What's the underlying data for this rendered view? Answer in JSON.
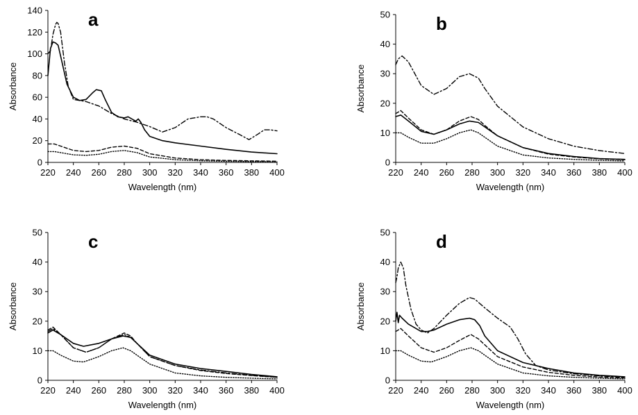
{
  "chart_data": [
    {
      "type": "line",
      "panel_label": "a",
      "xlabel": "Wavelength (nm)",
      "ylabel": "Absorbance",
      "xlim": [
        220,
        400
      ],
      "ylim": [
        0,
        140
      ],
      "xticks": [
        220,
        240,
        260,
        280,
        300,
        320,
        340,
        360,
        380,
        400
      ],
      "yticks": [
        0,
        20,
        40,
        60,
        80,
        100,
        120,
        140
      ],
      "grid": false,
      "series": [
        {
          "style": "solid",
          "color": "#000000",
          "x": [
            220,
            222,
            224,
            226,
            228,
            230,
            235,
            240,
            245,
            250,
            255,
            258,
            262,
            265,
            270,
            275,
            280,
            283,
            286,
            289,
            291,
            293,
            296,
            300,
            310,
            320,
            340,
            360,
            380,
            400
          ],
          "y": [
            80,
            105,
            111,
            110,
            108,
            98,
            72,
            60,
            57,
            58,
            64,
            67,
            66,
            58,
            46,
            42,
            41,
            42,
            40,
            38,
            40,
            37,
            30,
            24,
            20,
            18,
            15,
            12,
            9.5,
            8
          ]
        },
        {
          "style": "dashdot",
          "color": "#000000",
          "x": [
            220,
            222,
            224,
            226,
            227,
            228,
            230,
            233,
            236,
            240,
            245,
            250,
            260,
            270,
            280,
            290,
            300,
            310,
            320,
            330,
            340,
            345,
            350,
            360,
            370,
            378,
            385,
            390,
            395,
            400
          ],
          "y": [
            100,
            103,
            118,
            127,
            129,
            128,
            120,
            92,
            70,
            58,
            57,
            56,
            52,
            45,
            40,
            37,
            33,
            28,
            32,
            40,
            42,
            42,
            40,
            32,
            26,
            21,
            26,
            30,
            30,
            29
          ]
        },
        {
          "style": "dashed",
          "color": "#000000",
          "x": [
            220,
            225,
            230,
            240,
            250,
            260,
            270,
            280,
            290,
            300,
            320,
            340,
            360,
            380,
            400
          ],
          "y": [
            17,
            17,
            15,
            11,
            10,
            11,
            14,
            15,
            13,
            8,
            4,
            2.5,
            1.8,
            1.4,
            1.1
          ]
        },
        {
          "style": "dotted",
          "color": "#000000",
          "x": [
            220,
            225,
            230,
            240,
            250,
            260,
            270,
            280,
            290,
            300,
            320,
            340,
            360,
            380,
            400
          ],
          "y": [
            10,
            10,
            9,
            7,
            6.5,
            7.5,
            10,
            11,
            9,
            5,
            2.5,
            1.5,
            1,
            0.7,
            0.5
          ]
        }
      ]
    },
    {
      "type": "line",
      "panel_label": "b",
      "xlabel": "Wavelength (nm)",
      "ylabel": "Absorbance",
      "xlim": [
        220,
        400
      ],
      "ylim": [
        0,
        50
      ],
      "xticks": [
        220,
        240,
        260,
        280,
        300,
        320,
        340,
        360,
        380,
        400
      ],
      "yticks": [
        0,
        10,
        20,
        30,
        40,
        50
      ],
      "grid": false,
      "series": [
        {
          "style": "solid",
          "color": "#000000",
          "x": [
            220,
            224,
            230,
            240,
            250,
            260,
            270,
            278,
            285,
            290,
            300,
            320,
            340,
            360,
            380,
            400
          ],
          "y": [
            15.5,
            16,
            14,
            10.5,
            9.5,
            11,
            13,
            14,
            13.5,
            12,
            9,
            5,
            3,
            2,
            1.3,
            1
          ]
        },
        {
          "style": "dashdot",
          "color": "#000000",
          "x": [
            220,
            222,
            225,
            230,
            240,
            250,
            260,
            270,
            278,
            285,
            290,
            300,
            320,
            340,
            360,
            380,
            400
          ],
          "y": [
            33,
            35,
            36,
            34,
            26,
            23,
            25,
            29,
            30,
            28.5,
            25,
            19,
            12,
            8,
            5.5,
            4,
            3
          ]
        },
        {
          "style": "dashed",
          "color": "#000000",
          "x": [
            220,
            224,
            230,
            240,
            250,
            260,
            270,
            279,
            285,
            290,
            300,
            320,
            340,
            360,
            380,
            400
          ],
          "y": [
            16.5,
            17.5,
            15,
            11,
            9.5,
            11,
            14,
            15.5,
            14.5,
            12.5,
            9,
            5,
            2.8,
            1.8,
            1.2,
            0.9
          ]
        },
        {
          "style": "dotted",
          "color": "#000000",
          "x": [
            220,
            224,
            230,
            240,
            250,
            260,
            270,
            279,
            285,
            290,
            300,
            320,
            340,
            360,
            380,
            400
          ],
          "y": [
            10,
            10,
            8.5,
            6.5,
            6.5,
            8,
            10,
            11,
            10,
            8.5,
            5.5,
            2.5,
            1.5,
            1,
            0.7,
            0.5
          ]
        }
      ]
    },
    {
      "type": "line",
      "panel_label": "c",
      "xlabel": "Wavelength (nm)",
      "ylabel": "Absorbance",
      "xlim": [
        220,
        400
      ],
      "ylim": [
        0,
        50
      ],
      "xticks": [
        220,
        240,
        260,
        280,
        300,
        320,
        340,
        360,
        380,
        400
      ],
      "yticks": [
        0,
        10,
        20,
        30,
        40,
        50
      ],
      "grid": false,
      "series": [
        {
          "style": "solid",
          "color": "#000000",
          "x": [
            220,
            224,
            230,
            240,
            248,
            260,
            270,
            279,
            285,
            290,
            300,
            320,
            340,
            360,
            380,
            400
          ],
          "y": [
            16,
            17,
            15.5,
            12.5,
            11.5,
            12.5,
            14,
            15,
            14.5,
            12.5,
            8.5,
            5.5,
            4,
            3,
            2,
            1.2
          ]
        },
        {
          "style": "dashdot",
          "color": "#000000",
          "x": [
            220,
            224,
            230,
            240,
            250,
            260,
            270,
            280,
            285,
            290,
            300,
            320,
            340,
            360,
            380,
            400
          ],
          "y": [
            16.5,
            17.5,
            15.5,
            11,
            9.5,
            11,
            14,
            15.5,
            14.5,
            12.5,
            8,
            5,
            3.5,
            2.5,
            1.7,
            1
          ]
        },
        {
          "style": "dashed",
          "color": "#000000",
          "x": [
            220,
            224,
            230,
            240,
            250,
            260,
            270,
            280,
            285,
            290,
            300,
            320,
            340,
            360,
            380,
            400
          ],
          "y": [
            17,
            18,
            15.5,
            11,
            9.5,
            11,
            14,
            16,
            15,
            12.5,
            8,
            5,
            3.3,
            2.3,
            1.6,
            1
          ]
        },
        {
          "style": "dotted",
          "color": "#000000",
          "x": [
            220,
            224,
            230,
            240,
            248,
            260,
            270,
            279,
            285,
            290,
            300,
            320,
            340,
            360,
            380,
            400
          ],
          "y": [
            10,
            10,
            8.5,
            6.5,
            6.2,
            8,
            10,
            11,
            10,
            8.5,
            5.5,
            2.5,
            1.5,
            1,
            0.7,
            0.5
          ]
        }
      ]
    },
    {
      "type": "line",
      "panel_label": "d",
      "xlabel": "Wavelength (nm)",
      "ylabel": "Absorbance",
      "xlim": [
        220,
        400
      ],
      "ylim": [
        0,
        50
      ],
      "xticks": [
        220,
        240,
        260,
        280,
        300,
        320,
        340,
        360,
        380,
        400
      ],
      "yticks": [
        0,
        10,
        20,
        30,
        40,
        50
      ],
      "grid": false,
      "series": [
        {
          "style": "solid",
          "color": "#000000",
          "x": [
            220,
            221,
            222,
            223,
            225,
            230,
            240,
            245,
            250,
            260,
            270,
            278,
            282,
            286,
            290,
            300,
            320,
            340,
            360,
            380,
            400
          ],
          "y": [
            20,
            23,
            19.5,
            22,
            21,
            19,
            16.5,
            16.5,
            17,
            19,
            20.5,
            21,
            20.5,
            18.5,
            15,
            10,
            6,
            4,
            2.5,
            1.7,
            1.2
          ]
        },
        {
          "style": "dashdot",
          "color": "#000000",
          "x": [
            220,
            221,
            222,
            224,
            226,
            228,
            232,
            236,
            240,
            245,
            250,
            260,
            270,
            278,
            282,
            290,
            300,
            310,
            316,
            322,
            330,
            340,
            360,
            380,
            400
          ],
          "y": [
            33,
            35,
            38,
            40,
            38,
            32,
            24,
            19,
            17,
            16,
            17.5,
            22,
            26,
            28,
            27.5,
            24.5,
            21,
            18,
            14,
            9,
            5,
            3.5,
            2.2,
            1.5,
            1
          ]
        },
        {
          "style": "dashed",
          "color": "#000000",
          "x": [
            220,
            224,
            230,
            240,
            250,
            260,
            270,
            279,
            285,
            290,
            300,
            320,
            340,
            360,
            380,
            400
          ],
          "y": [
            16.5,
            17.5,
            15,
            11,
            9.5,
            11,
            13.5,
            15.5,
            14,
            12,
            8,
            4.5,
            2.7,
            1.7,
            1.1,
            0.8
          ]
        },
        {
          "style": "dotted",
          "color": "#000000",
          "x": [
            220,
            224,
            230,
            240,
            248,
            260,
            270,
            279,
            285,
            290,
            300,
            320,
            340,
            360,
            380,
            400
          ],
          "y": [
            10,
            10,
            8.5,
            6.5,
            6.2,
            8,
            10,
            11,
            10,
            8.5,
            5.5,
            2.5,
            1.5,
            1,
            0.7,
            0.5
          ]
        }
      ]
    }
  ]
}
